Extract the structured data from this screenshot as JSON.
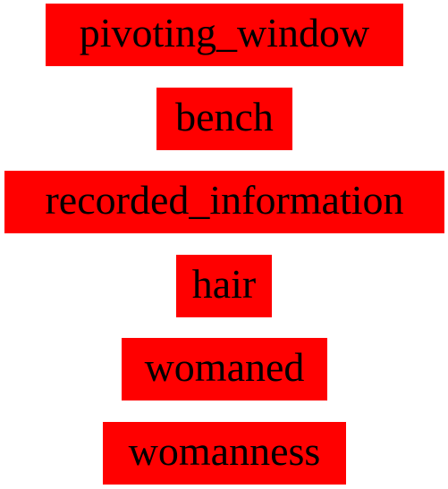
{
  "colors": {
    "box_background": "#ff0000",
    "text": "#000000",
    "page_background": "#ffffff"
  },
  "words": [
    "pivoting_window",
    "bench",
    "recorded_information",
    "hair",
    "womaned",
    "womanness"
  ]
}
